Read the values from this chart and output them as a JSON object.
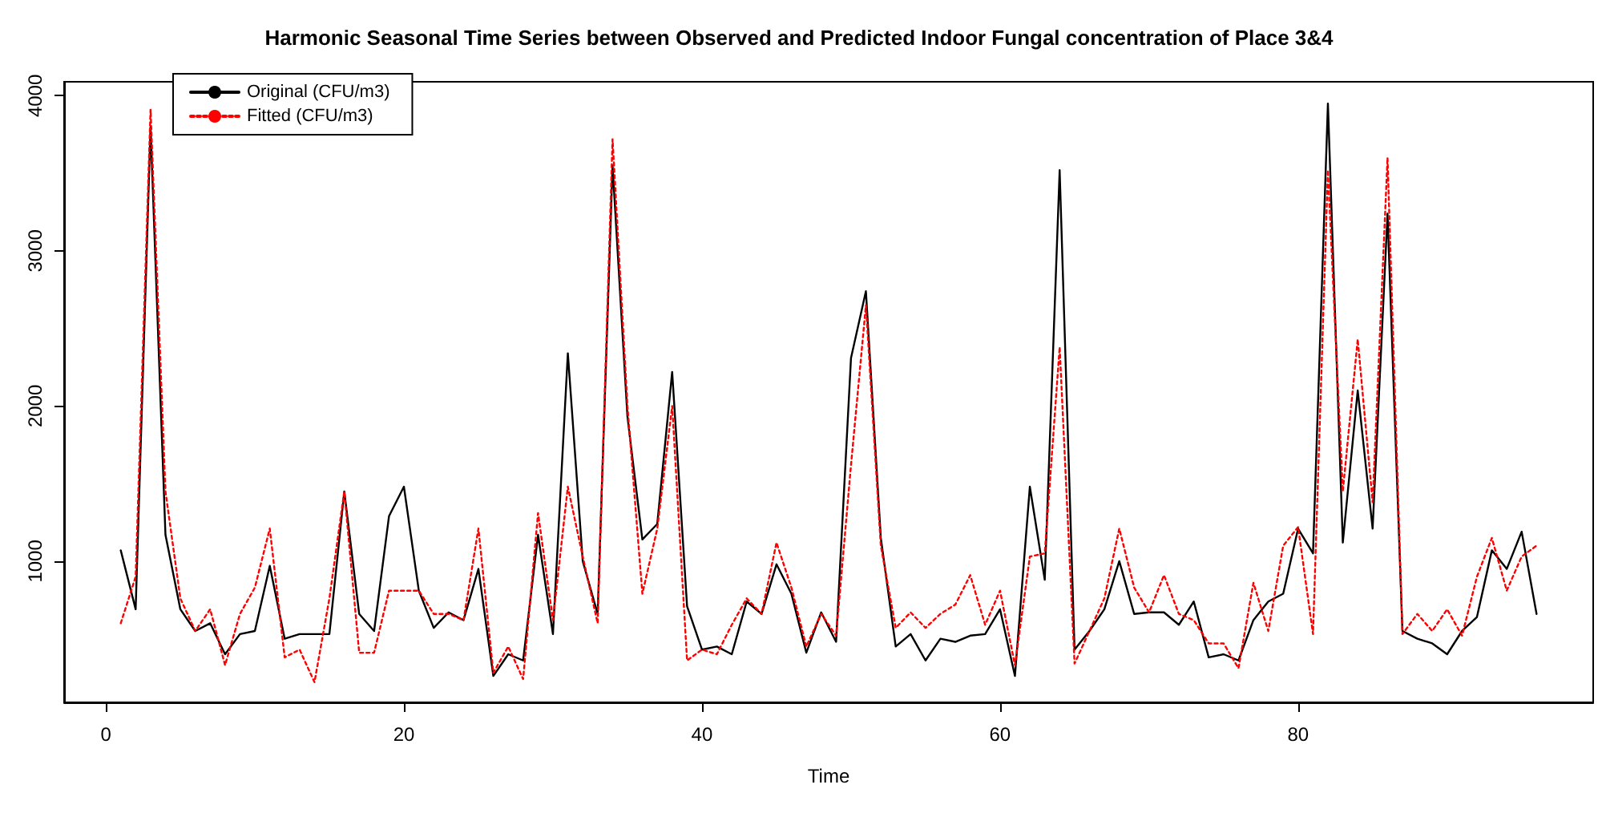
{
  "chart_data": {
    "type": "line",
    "title": "Harmonic Seasonal Time Series between Observed and Predicted Indoor Fungal concentration of Place 3&4",
    "xlabel": "Time",
    "x": [
      1,
      2,
      3,
      4,
      5,
      6,
      7,
      8,
      9,
      10,
      11,
      12,
      13,
      14,
      15,
      16,
      17,
      18,
      19,
      20,
      21,
      22,
      23,
      24,
      25,
      26,
      27,
      28,
      29,
      30,
      31,
      32,
      33,
      34,
      35,
      36,
      37,
      38,
      39,
      40,
      41,
      42,
      43,
      44,
      45,
      46,
      47,
      48,
      49,
      50,
      51,
      52,
      53,
      54,
      55,
      56,
      57,
      58,
      59,
      60,
      61,
      62,
      63,
      64,
      65,
      66,
      67,
      68,
      69,
      70,
      71,
      72,
      73,
      74,
      75,
      76,
      77,
      78,
      79,
      80,
      81,
      82,
      83,
      84,
      85,
      86,
      87,
      88,
      89,
      90,
      91,
      92,
      93,
      94,
      95,
      96
    ],
    "series": [
      {
        "name": "Original (CFU/m3)",
        "color": "#000000",
        "line_style": "solid",
        "values": [
          1070,
          690,
          3800,
          1170,
          690,
          550,
          600,
          400,
          530,
          550,
          970,
          500,
          530,
          530,
          530,
          1450,
          660,
          550,
          1290,
          1480,
          810,
          570,
          670,
          620,
          950,
          260,
          400,
          360,
          1170,
          530,
          2340,
          1000,
          660,
          3550,
          1930,
          1140,
          1240,
          2220,
          710,
          430,
          450,
          400,
          740,
          660,
          980,
          790,
          410,
          670,
          480,
          2310,
          2740,
          1150,
          450,
          530,
          360,
          500,
          480,
          520,
          530,
          690,
          260,
          1480,
          880,
          3520,
          430,
          550,
          690,
          1000,
          660,
          670,
          670,
          590,
          740,
          380,
          400,
          360,
          620,
          740,
          790,
          1210,
          1050,
          3950,
          1120,
          2100,
          1210,
          3240,
          550,
          500,
          470,
          400,
          550,
          640,
          1070,
          950,
          1190,
          660
        ]
      },
      {
        "name": "Fitted (CFU/m3)",
        "color": "#ff0000",
        "line_style": "dotted",
        "values": [
          600,
          900,
          3910,
          1450,
          760,
          550,
          690,
          330,
          660,
          830,
          1210,
          380,
          430,
          220,
          760,
          1450,
          410,
          410,
          810,
          810,
          810,
          660,
          660,
          620,
          1210,
          280,
          450,
          240,
          1310,
          620,
          1480,
          1030,
          600,
          3720,
          2000,
          790,
          1210,
          2000,
          360,
          430,
          400,
          590,
          760,
          660,
          1120,
          830,
          450,
          660,
          520,
          1620,
          2650,
          1100,
          570,
          670,
          570,
          660,
          720,
          910,
          590,
          810,
          330,
          1030,
          1050,
          2380,
          340,
          550,
          760,
          1210,
          830,
          670,
          910,
          660,
          620,
          470,
          470,
          310,
          860,
          550,
          1100,
          1220,
          530,
          3520,
          1450,
          2430,
          1380,
          3600,
          530,
          660,
          550,
          690,
          520,
          900,
          1150,
          810,
          1030,
          1100
        ]
      }
    ],
    "xlim": [
      -2.8,
      99.8
    ],
    "xticks": [
      0,
      20,
      40,
      60,
      80
    ],
    "ylim": [
      90,
      4090
    ],
    "yticks": [
      1000,
      2000,
      3000,
      4000
    ],
    "grid": false,
    "legend": "top left",
    "marker": "none"
  }
}
